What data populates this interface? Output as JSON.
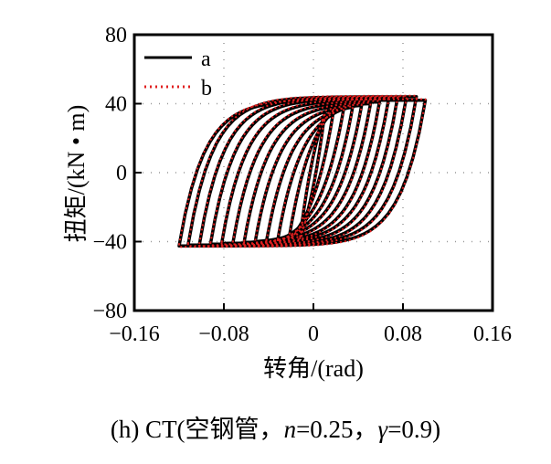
{
  "chart_data": {
    "type": "line",
    "title": "",
    "xlabel": "转角/(rad)",
    "ylabel": "扭矩/(kN • m)",
    "xlim": [
      -0.16,
      0.16
    ],
    "ylim": [
      -80,
      80
    ],
    "xticks": [
      -0.16,
      -0.08,
      0,
      0.08,
      0.16
    ],
    "xtick_labels": [
      "−0.16",
      "−0.08",
      "0",
      "0.08",
      "0.16"
    ],
    "yticks": [
      80,
      40,
      0,
      -40,
      -80
    ],
    "ytick_labels": [
      "80",
      "40",
      "0",
      "−40",
      "−80"
    ],
    "grid": true,
    "legend": {
      "placement": "top-left",
      "entries": [
        "a",
        "b"
      ]
    },
    "series": [
      {
        "name": "a",
        "color": "#000000",
        "style": "solid",
        "cycles": [
          {
            "neg_amp": -0.012,
            "pos_amp": 0.01,
            "neg_peak": -38,
            "pos_peak": 34
          },
          {
            "neg_amp": -0.022,
            "pos_amp": 0.018,
            "neg_peak": -39,
            "pos_peak": 36
          },
          {
            "neg_amp": -0.032,
            "pos_amp": 0.027,
            "neg_peak": -39.5,
            "pos_peak": 37
          },
          {
            "neg_amp": -0.042,
            "pos_amp": 0.035,
            "neg_peak": -40,
            "pos_peak": 38
          },
          {
            "neg_amp": -0.052,
            "pos_amp": 0.043,
            "neg_peak": -40,
            "pos_peak": 39
          },
          {
            "neg_amp": -0.062,
            "pos_amp": 0.051,
            "neg_peak": -40.5,
            "pos_peak": 40
          },
          {
            "neg_amp": -0.072,
            "pos_amp": 0.059,
            "neg_peak": -41,
            "pos_peak": 41
          },
          {
            "neg_amp": -0.082,
            "pos_amp": 0.067,
            "neg_peak": -41,
            "pos_peak": 42
          },
          {
            "neg_amp": -0.092,
            "pos_amp": 0.075,
            "neg_peak": -41.5,
            "pos_peak": 43
          },
          {
            "neg_amp": -0.102,
            "pos_amp": 0.083,
            "neg_peak": -42,
            "pos_peak": 43.5
          },
          {
            "neg_amp": -0.112,
            "pos_amp": 0.092,
            "neg_peak": -42,
            "pos_peak": 44
          },
          {
            "neg_amp": -0.12,
            "pos_amp": 0.1,
            "neg_peak": -42.5,
            "pos_peak": 42
          }
        ]
      },
      {
        "name": "b",
        "color": "#e02020",
        "style": "dotted",
        "same_cycles_as": "a"
      }
    ]
  },
  "caption": {
    "prefix": "(h) CT(空钢管，",
    "n_symbol": "n",
    "n_value": "=0.25，",
    "gamma_symbol": "γ",
    "gamma_value": "=0.9)"
  }
}
